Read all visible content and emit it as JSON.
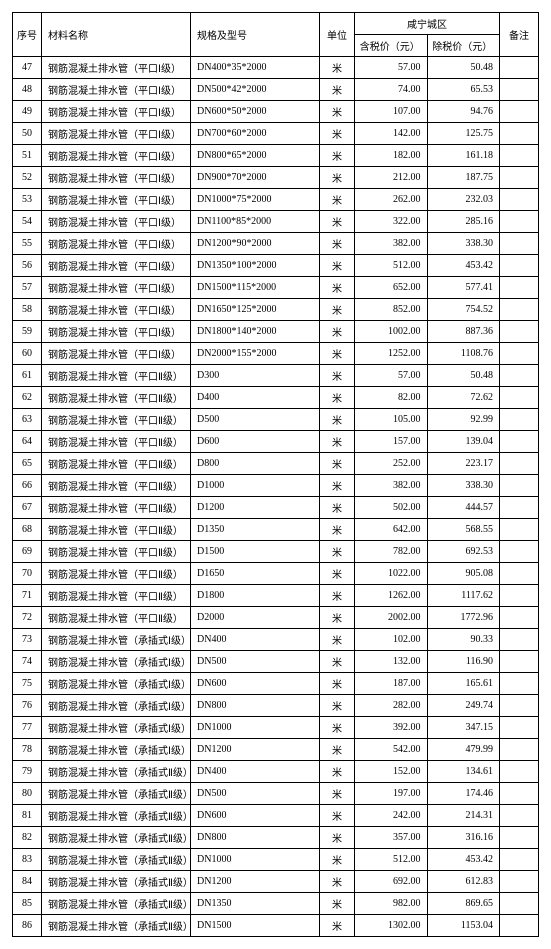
{
  "headers": {
    "seq": "序号",
    "name": "材料名称",
    "spec": "规格及型号",
    "unit": "单位",
    "region": "咸宁城区",
    "price_incl": "含税价（元）",
    "price_excl": "除税价（元）",
    "note": "备注"
  },
  "rows": [
    {
      "seq": "47",
      "name": "钢筋混凝土排水管（平口Ⅰ级）",
      "spec": "DN400*35*2000",
      "unit": "米",
      "p1": "57.00",
      "p2": "50.48",
      "note": ""
    },
    {
      "seq": "48",
      "name": "钢筋混凝土排水管（平口Ⅰ级）",
      "spec": "DN500*42*2000",
      "unit": "米",
      "p1": "74.00",
      "p2": "65.53",
      "note": ""
    },
    {
      "seq": "49",
      "name": "钢筋混凝土排水管（平口Ⅰ级）",
      "spec": "DN600*50*2000",
      "unit": "米",
      "p1": "107.00",
      "p2": "94.76",
      "note": ""
    },
    {
      "seq": "50",
      "name": "钢筋混凝土排水管（平口Ⅰ级）",
      "spec": "DN700*60*2000",
      "unit": "米",
      "p1": "142.00",
      "p2": "125.75",
      "note": ""
    },
    {
      "seq": "51",
      "name": "钢筋混凝土排水管（平口Ⅰ级）",
      "spec": "DN800*65*2000",
      "unit": "米",
      "p1": "182.00",
      "p2": "161.18",
      "note": ""
    },
    {
      "seq": "52",
      "name": "钢筋混凝土排水管（平口Ⅰ级）",
      "spec": "DN900*70*2000",
      "unit": "米",
      "p1": "212.00",
      "p2": "187.75",
      "note": ""
    },
    {
      "seq": "53",
      "name": "钢筋混凝土排水管（平口Ⅰ级）",
      "spec": "DN1000*75*2000",
      "unit": "米",
      "p1": "262.00",
      "p2": "232.03",
      "note": ""
    },
    {
      "seq": "54",
      "name": "钢筋混凝土排水管（平口Ⅰ级）",
      "spec": "DN1100*85*2000",
      "unit": "米",
      "p1": "322.00",
      "p2": "285.16",
      "note": ""
    },
    {
      "seq": "55",
      "name": "钢筋混凝土排水管（平口Ⅰ级）",
      "spec": "DN1200*90*2000",
      "unit": "米",
      "p1": "382.00",
      "p2": "338.30",
      "note": ""
    },
    {
      "seq": "56",
      "name": "钢筋混凝土排水管（平口Ⅰ级）",
      "spec": "DN1350*100*2000",
      "unit": "米",
      "p1": "512.00",
      "p2": "453.42",
      "note": ""
    },
    {
      "seq": "57",
      "name": "钢筋混凝土排水管（平口Ⅰ级）",
      "spec": "DN1500*115*2000",
      "unit": "米",
      "p1": "652.00",
      "p2": "577.41",
      "note": ""
    },
    {
      "seq": "58",
      "name": "钢筋混凝土排水管（平口Ⅰ级）",
      "spec": "DN1650*125*2000",
      "unit": "米",
      "p1": "852.00",
      "p2": "754.52",
      "note": ""
    },
    {
      "seq": "59",
      "name": "钢筋混凝土排水管（平口Ⅰ级）",
      "spec": "DN1800*140*2000",
      "unit": "米",
      "p1": "1002.00",
      "p2": "887.36",
      "note": ""
    },
    {
      "seq": "60",
      "name": "钢筋混凝土排水管（平口Ⅰ级）",
      "spec": "DN2000*155*2000",
      "unit": "米",
      "p1": "1252.00",
      "p2": "1108.76",
      "note": ""
    },
    {
      "seq": "61",
      "name": "钢筋混凝土排水管（平口Ⅱ级）",
      "spec": "D300",
      "unit": "米",
      "p1": "57.00",
      "p2": "50.48",
      "note": ""
    },
    {
      "seq": "62",
      "name": "钢筋混凝土排水管（平口Ⅱ级）",
      "spec": "D400",
      "unit": "米",
      "p1": "82.00",
      "p2": "72.62",
      "note": ""
    },
    {
      "seq": "63",
      "name": "钢筋混凝土排水管（平口Ⅱ级）",
      "spec": "D500",
      "unit": "米",
      "p1": "105.00",
      "p2": "92.99",
      "note": ""
    },
    {
      "seq": "64",
      "name": "钢筋混凝土排水管（平口Ⅱ级）",
      "spec": "D600",
      "unit": "米",
      "p1": "157.00",
      "p2": "139.04",
      "note": ""
    },
    {
      "seq": "65",
      "name": "钢筋混凝土排水管（平口Ⅱ级）",
      "spec": "D800",
      "unit": "米",
      "p1": "252.00",
      "p2": "223.17",
      "note": ""
    },
    {
      "seq": "66",
      "name": "钢筋混凝土排水管（平口Ⅱ级）",
      "spec": "D1000",
      "unit": "米",
      "p1": "382.00",
      "p2": "338.30",
      "note": ""
    },
    {
      "seq": "67",
      "name": "钢筋混凝土排水管（平口Ⅱ级）",
      "spec": "D1200",
      "unit": "米",
      "p1": "502.00",
      "p2": "444.57",
      "note": ""
    },
    {
      "seq": "68",
      "name": "钢筋混凝土排水管（平口Ⅱ级）",
      "spec": "D1350",
      "unit": "米",
      "p1": "642.00",
      "p2": "568.55",
      "note": ""
    },
    {
      "seq": "69",
      "name": "钢筋混凝土排水管（平口Ⅱ级）",
      "spec": "D1500",
      "unit": "米",
      "p1": "782.00",
      "p2": "692.53",
      "note": ""
    },
    {
      "seq": "70",
      "name": "钢筋混凝土排水管（平口Ⅱ级）",
      "spec": "D1650",
      "unit": "米",
      "p1": "1022.00",
      "p2": "905.08",
      "note": ""
    },
    {
      "seq": "71",
      "name": "钢筋混凝土排水管（平口Ⅱ级）",
      "spec": "D1800",
      "unit": "米",
      "p1": "1262.00",
      "p2": "1117.62",
      "note": ""
    },
    {
      "seq": "72",
      "name": "钢筋混凝土排水管（平口Ⅱ级）",
      "spec": "D2000",
      "unit": "米",
      "p1": "2002.00",
      "p2": "1772.96",
      "note": ""
    },
    {
      "seq": "73",
      "name": "钢筋混凝土排水管（承插式Ⅰ级）",
      "spec": "DN400",
      "unit": "米",
      "p1": "102.00",
      "p2": "90.33",
      "note": ""
    },
    {
      "seq": "74",
      "name": "钢筋混凝土排水管（承插式Ⅰ级）",
      "spec": "DN500",
      "unit": "米",
      "p1": "132.00",
      "p2": "116.90",
      "note": ""
    },
    {
      "seq": "75",
      "name": "钢筋混凝土排水管（承插式Ⅰ级）",
      "spec": "DN600",
      "unit": "米",
      "p1": "187.00",
      "p2": "165.61",
      "note": ""
    },
    {
      "seq": "76",
      "name": "钢筋混凝土排水管（承插式Ⅰ级）",
      "spec": "DN800",
      "unit": "米",
      "p1": "282.00",
      "p2": "249.74",
      "note": ""
    },
    {
      "seq": "77",
      "name": "钢筋混凝土排水管（承插式Ⅰ级）",
      "spec": "DN1000",
      "unit": "米",
      "p1": "392.00",
      "p2": "347.15",
      "note": ""
    },
    {
      "seq": "78",
      "name": "钢筋混凝土排水管（承插式Ⅰ级）",
      "spec": "DN1200",
      "unit": "米",
      "p1": "542.00",
      "p2": "479.99",
      "note": ""
    },
    {
      "seq": "79",
      "name": "钢筋混凝土排水管（承插式Ⅱ级）",
      "spec": "DN400",
      "unit": "米",
      "p1": "152.00",
      "p2": "134.61",
      "note": ""
    },
    {
      "seq": "80",
      "name": "钢筋混凝土排水管（承插式Ⅱ级）",
      "spec": "DN500",
      "unit": "米",
      "p1": "197.00",
      "p2": "174.46",
      "note": ""
    },
    {
      "seq": "81",
      "name": "钢筋混凝土排水管（承插式Ⅱ级）",
      "spec": "DN600",
      "unit": "米",
      "p1": "242.00",
      "p2": "214.31",
      "note": ""
    },
    {
      "seq": "82",
      "name": "钢筋混凝土排水管（承插式Ⅱ级）",
      "spec": "DN800",
      "unit": "米",
      "p1": "357.00",
      "p2": "316.16",
      "note": ""
    },
    {
      "seq": "83",
      "name": "钢筋混凝土排水管（承插式Ⅱ级）",
      "spec": "DN1000",
      "unit": "米",
      "p1": "512.00",
      "p2": "453.42",
      "note": ""
    },
    {
      "seq": "84",
      "name": "钢筋混凝土排水管（承插式Ⅱ级）",
      "spec": "DN1200",
      "unit": "米",
      "p1": "692.00",
      "p2": "612.83",
      "note": ""
    },
    {
      "seq": "85",
      "name": "钢筋混凝土排水管（承插式Ⅱ级）",
      "spec": "DN1350",
      "unit": "米",
      "p1": "982.00",
      "p2": "869.65",
      "note": ""
    },
    {
      "seq": "86",
      "name": "钢筋混凝土排水管（承插式Ⅱ级）",
      "spec": "DN1500",
      "unit": "米",
      "p1": "1302.00",
      "p2": "1153.04",
      "note": ""
    }
  ]
}
